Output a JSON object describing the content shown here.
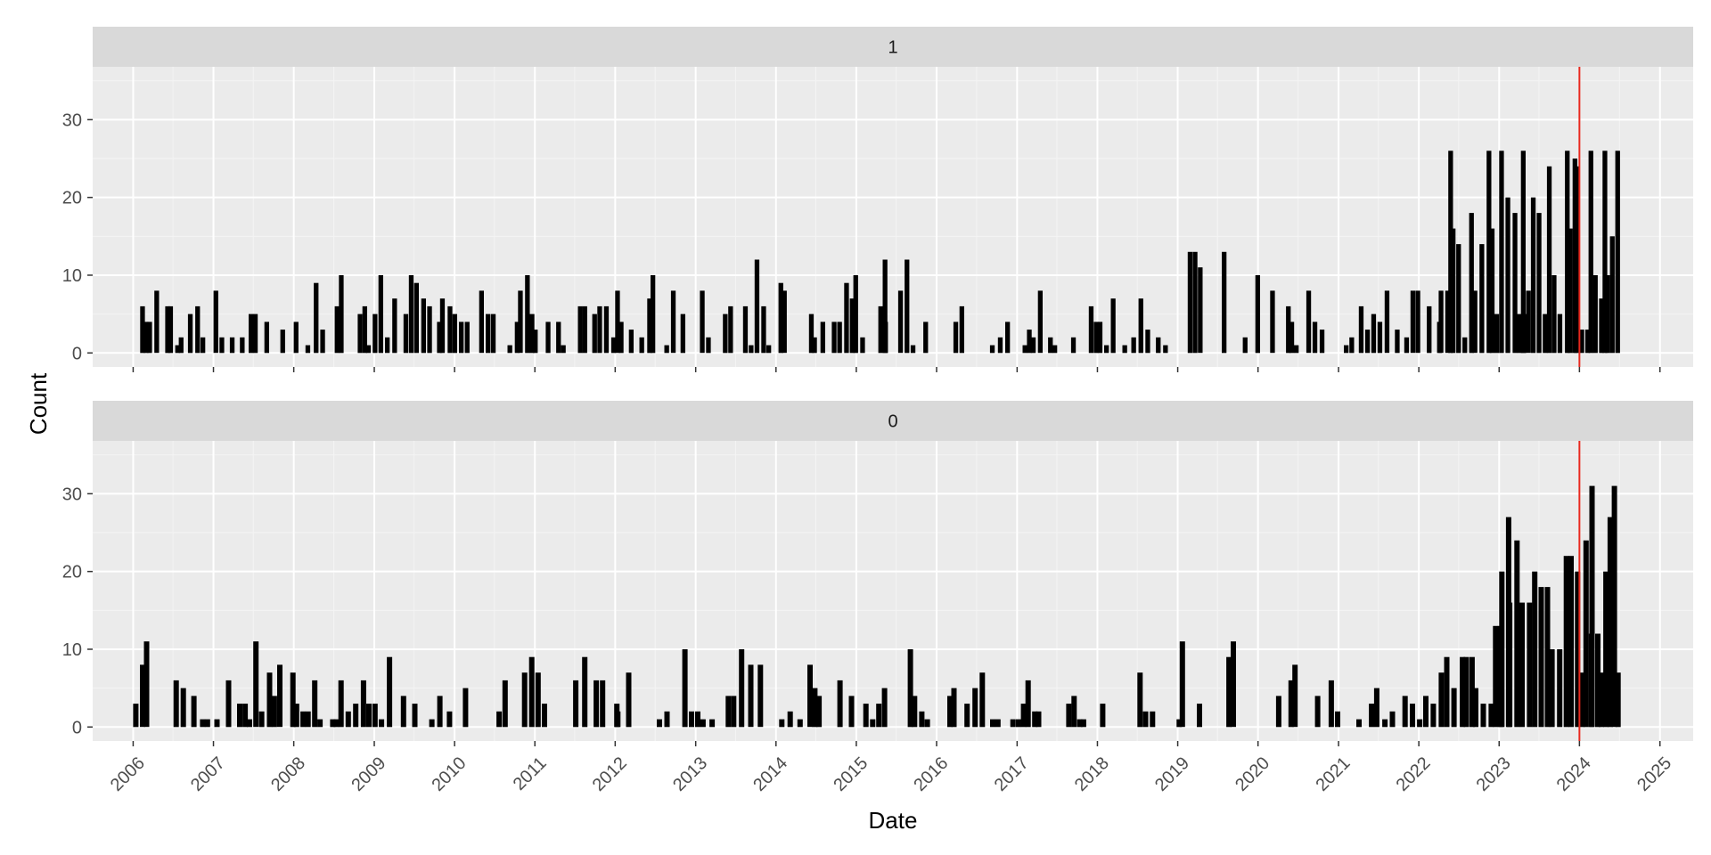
{
  "chart_data": {
    "type": "bar",
    "facet_layout": "2 rows, 1 column, shared x axis",
    "xlabel": "Date",
    "ylabel": "Count",
    "x_axis": {
      "kind": "date",
      "range": [
        "2005-07-01",
        "2025-06-01"
      ],
      "tick_labels": [
        "2006",
        "2007",
        "2008",
        "2009",
        "2010",
        "2011",
        "2012",
        "2013",
        "2014",
        "2015",
        "2016",
        "2017",
        "2018",
        "2019",
        "2020",
        "2021",
        "2022",
        "2023",
        "2024",
        "2025"
      ],
      "tick_label_rotation": "45 degrees"
    },
    "y_axis": {
      "range": [
        -1.8,
        36.8
      ],
      "tick_labels": [
        "0",
        "10",
        "20",
        "30"
      ]
    },
    "reference_line": {
      "x": "2024-01-01",
      "color": "#e8281e"
    },
    "panel_background": "#ebebeb",
    "strip_background": "#d9d9d9",
    "grid": true,
    "bar_color": "#000000",
    "facets": [
      {
        "strip_label": "1",
        "bar_width_months": 0.7,
        "bins": [
          {
            "range": [
              "2006-01-01",
              "2007-09-01"
            ],
            "levels": [
              0,
              1,
              2,
              4,
              5,
              6,
              8
            ]
          },
          {
            "range": [
              "2007-11-01",
              "2011-12-31"
            ],
            "levels": [
              0,
              1,
              2,
              3,
              4,
              5,
              6,
              7,
              8,
              9,
              10
            ]
          },
          {
            "range": [
              "2012-01-01",
              "2015-12-31"
            ],
            "levels": [
              0,
              1,
              2,
              3,
              4,
              5,
              6,
              7,
              8,
              9,
              10,
              12
            ]
          },
          {
            "range": [
              "2016-01-01",
              "2018-12-31"
            ],
            "levels": [
              0,
              1,
              2,
              3,
              4,
              5,
              6,
              7,
              8
            ]
          },
          {
            "range": [
              "2019-01-01",
              "2019-12-31"
            ],
            "levels": [
              0,
              2,
              4,
              6,
              8,
              10,
              11,
              13
            ]
          },
          {
            "range": [
              "2020-01-01",
              "2022-03-31"
            ],
            "levels": [
              0,
              1,
              2,
              3,
              4,
              5,
              6,
              8
            ]
          },
          {
            "range": [
              "2022-04-01",
              "2022-12-31"
            ],
            "levels": [
              2,
              5,
              8,
              10,
              14,
              16,
              18,
              26
            ]
          },
          {
            "range": [
              "2023-01-01",
              "2023-12-31"
            ],
            "levels": [
              5,
              8,
              10,
              12,
              14,
              16,
              18,
              20,
              22,
              24,
              26
            ]
          },
          {
            "range": [
              "2024-01-01",
              "2024-06-30"
            ],
            "levels": [
              3,
              5,
              7,
              10,
              15,
              26
            ]
          }
        ],
        "peak_values": [
          {
            "x": "2009-01-20",
            "count": 10
          },
          {
            "x": "2015-05-01",
            "count": 12
          },
          {
            "x": "2019-03-10",
            "count": 13
          },
          {
            "x": "2022-05-15",
            "count": 26
          },
          {
            "x": "2023-04-10",
            "count": 26
          },
          {
            "x": "2023-12-01",
            "count": 25
          },
          {
            "x": "2024-04-15",
            "count": 26
          }
        ]
      },
      {
        "strip_label": "0",
        "bar_width_months": 0.8,
        "bins": [
          {
            "range": [
              "2006-01-01",
              "2007-09-01"
            ],
            "levels": [
              0,
              1,
              2,
              3,
              4,
              5,
              6,
              7,
              8,
              9,
              11
            ]
          },
          {
            "range": [
              "2007-09-01",
              "2011-12-31"
            ],
            "levels": [
              0,
              1,
              2,
              3,
              4,
              5,
              6,
              7,
              8,
              9
            ]
          },
          {
            "range": [
              "2012-01-01",
              "2015-12-31"
            ],
            "levels": [
              0,
              1,
              2,
              3,
              4,
              5,
              6,
              7,
              8,
              10
            ]
          },
          {
            "range": [
              "2016-01-01",
              "2018-12-31"
            ],
            "levels": [
              0,
              1,
              2,
              3,
              4,
              5,
              6,
              7,
              8
            ]
          },
          {
            "range": [
              "2019-01-01",
              "2019-12-31"
            ],
            "levels": [
              0,
              3,
              6,
              9,
              10,
              11
            ]
          },
          {
            "range": [
              "2020-01-01",
              "2022-03-31"
            ],
            "levels": [
              0,
              1,
              2,
              3,
              4,
              5,
              6,
              8,
              10
            ]
          },
          {
            "range": [
              "2022-04-01",
              "2022-12-31"
            ],
            "levels": [
              3,
              5,
              7,
              9,
              11,
              13,
              15
            ]
          },
          {
            "range": [
              "2023-01-01",
              "2023-12-31"
            ],
            "levels": [
              10,
              14,
              16,
              18,
              20,
              22,
              24,
              27
            ]
          },
          {
            "range": [
              "2024-01-01",
              "2024-06-30"
            ],
            "levels": [
              7,
              12,
              16,
              20,
              24,
              27,
              30,
              31
            ]
          }
        ],
        "peak_values": [
          {
            "x": "2007-07-01",
            "count": 11
          },
          {
            "x": "2012-11-01",
            "count": 10
          },
          {
            "x": "2019-01-10",
            "count": 11
          },
          {
            "x": "2023-02-01",
            "count": 27
          },
          {
            "x": "2024-02-15",
            "count": 31
          }
        ]
      }
    ]
  }
}
